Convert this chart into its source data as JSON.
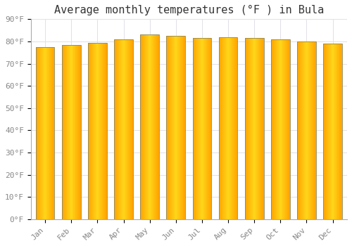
{
  "title": "Average monthly temperatures (°F ) in Bula",
  "months": [
    "Jan",
    "Feb",
    "Mar",
    "Apr",
    "May",
    "Jun",
    "Jul",
    "Aug",
    "Sep",
    "Oct",
    "Nov",
    "Dec"
  ],
  "values": [
    77.5,
    78.5,
    79.5,
    81.0,
    83.0,
    82.5,
    81.5,
    82.0,
    81.5,
    81.0,
    80.0,
    79.0
  ],
  "bar_color_center": "#FFD740",
  "bar_color_edge": "#F5A623",
  "bar_outline_color": "#888866",
  "background_color": "#FFFFFF",
  "plot_bg_color": "#FFFFFF",
  "ylim": [
    0,
    90
  ],
  "yticks": [
    0,
    10,
    20,
    30,
    40,
    50,
    60,
    70,
    80,
    90
  ],
  "ytick_labels": [
    "0°F",
    "10°F",
    "20°F",
    "30°F",
    "40°F",
    "50°F",
    "60°F",
    "70°F",
    "80°F",
    "90°F"
  ],
  "grid_color": "#E0E0E8",
  "title_fontsize": 11,
  "tick_fontsize": 8,
  "tick_color": "#888888",
  "spine_color": "#AAAAAA",
  "bar_width": 0.72
}
